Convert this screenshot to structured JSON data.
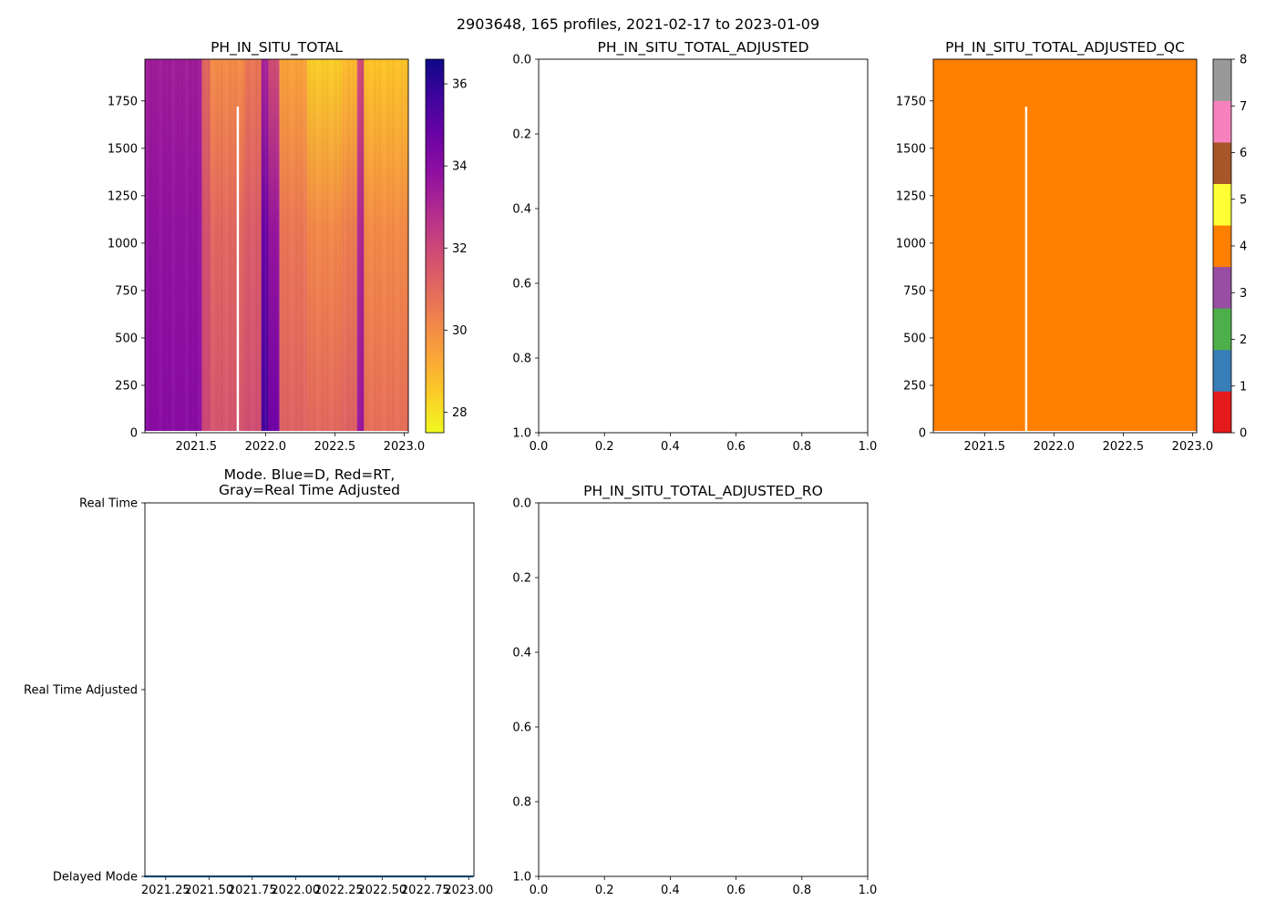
{
  "figure": {
    "suptitle": "2903648, 165 profiles, 2021-02-17 to 2023-01-09"
  },
  "chart_data": [
    {
      "id": "p1",
      "type": "heatmap",
      "title": "PH_IN_SITU_TOTAL",
      "xlim": [
        2021.13,
        2023.03
      ],
      "ylim": [
        1970,
        0
      ],
      "xticks": [
        2021.5,
        2022.0,
        2022.5,
        2023.0
      ],
      "xtick_labels": [
        "2021.5",
        "2022.0",
        "2022.5",
        "2023.0"
      ],
      "yticks": [
        0,
        250,
        500,
        750,
        1000,
        1250,
        1500,
        1750
      ],
      "ytick_labels": [
        "0",
        "250",
        "500",
        "750",
        "1000",
        "1250",
        "1500",
        "1750"
      ],
      "colormap": "plasma_r",
      "colorbar": {
        "range": [
          27.5,
          36.6
        ],
        "ticks": [
          28,
          30,
          32,
          34,
          36
        ],
        "tick_labels": [
          "28",
          "30",
          "32",
          "34",
          "36"
        ]
      },
      "bands": [
        {
          "x0": 2021.13,
          "x1": 2021.54,
          "top": 33.4,
          "bottom": 34.0
        },
        {
          "x0": 2021.54,
          "x1": 2021.6,
          "top": 31.0,
          "bottom": 32.0
        },
        {
          "x0": 2021.6,
          "x1": 2021.85,
          "top": 30.0,
          "bottom": 31.6
        },
        {
          "x0": 2021.85,
          "x1": 2021.97,
          "top": 30.6,
          "bottom": 31.8
        },
        {
          "x0": 2021.97,
          "x1": 2022.02,
          "top": 33.2,
          "bottom": 35.6
        },
        {
          "x0": 2022.02,
          "x1": 2022.1,
          "top": 31.8,
          "bottom": 34.6
        },
        {
          "x0": 2022.1,
          "x1": 2022.3,
          "top": 29.4,
          "bottom": 31.2
        },
        {
          "x0": 2022.3,
          "x1": 2022.55,
          "top": 28.4,
          "bottom": 31.0
        },
        {
          "x0": 2022.55,
          "x1": 2022.66,
          "top": 28.8,
          "bottom": 31.2
        },
        {
          "x0": 2022.66,
          "x1": 2022.71,
          "top": 31.8,
          "bottom": 33.6
        },
        {
          "x0": 2022.71,
          "x1": 2023.03,
          "top": 28.6,
          "bottom": 30.8
        }
      ],
      "gap_x": 2021.8,
      "gap_from_depth": 1720
    },
    {
      "id": "p2",
      "type": "scatter",
      "title": "PH_IN_SITU_TOTAL_ADJUSTED",
      "xlim": [
        0,
        1
      ],
      "ylim": [
        0,
        1
      ],
      "xticks": [
        0.0,
        0.2,
        0.4,
        0.6,
        0.8,
        1.0
      ],
      "xtick_labels": [
        "0.0",
        "0.2",
        "0.4",
        "0.6",
        "0.8",
        "1.0"
      ],
      "yticks": [
        0.0,
        0.2,
        0.4,
        0.6,
        0.8,
        1.0
      ],
      "ytick_labels": [
        "0.0",
        "0.2",
        "0.4",
        "0.6",
        "0.8",
        "1.0"
      ],
      "values": []
    },
    {
      "id": "p3",
      "type": "heatmap",
      "title": "PH_IN_SITU_TOTAL_ADJUSTED_QC",
      "xlim": [
        2021.13,
        2023.03
      ],
      "ylim": [
        1970,
        0
      ],
      "xticks": [
        2021.5,
        2022.0,
        2022.5,
        2023.0
      ],
      "xtick_labels": [
        "2021.5",
        "2022.0",
        "2022.5",
        "2023.0"
      ],
      "yticks": [
        0,
        250,
        500,
        750,
        1000,
        1250,
        1500,
        1750
      ],
      "ytick_labels": [
        "0",
        "250",
        "500",
        "750",
        "1000",
        "1250",
        "1500",
        "1750"
      ],
      "fill_value": 4,
      "fill_color": "#ff7f00",
      "gap_x": 2021.8,
      "gap_from_depth": 1720,
      "colorbar": {
        "range": [
          0,
          8
        ],
        "ticks": [
          0,
          1,
          2,
          3,
          4,
          5,
          6,
          7,
          8
        ],
        "tick_labels": [
          "0",
          "1",
          "2",
          "3",
          "4",
          "5",
          "6",
          "7",
          "8"
        ],
        "colors": [
          "#e41a1c",
          "#377eb8",
          "#4daf4a",
          "#984ea3",
          "#ff7f00",
          "#ffff33",
          "#a65628",
          "#f781bf",
          "#999999"
        ]
      }
    },
    {
      "id": "p4",
      "type": "scatter",
      "title_line1": "Mode. Blue=D, Red=RT,",
      "title_line2": "Gray=Real Time Adjusted",
      "xlim": [
        2021.13,
        2023.03
      ],
      "ylim": [
        0,
        2
      ],
      "xticks": [
        2021.25,
        2021.5,
        2021.75,
        2022.0,
        2022.25,
        2022.5,
        2022.75,
        2023.0
      ],
      "xtick_labels": [
        "2021.25",
        "2021.50",
        "2021.75",
        "2022.00",
        "2022.25",
        "2022.50",
        "2022.75",
        "2023.00"
      ],
      "yticks": [
        0,
        1,
        2
      ],
      "ytick_labels": [
        "Real Time",
        "Real Time Adjusted",
        "Delayed Mode"
      ],
      "series": [
        {
          "name": "Delayed Mode",
          "color": "#1f77b4",
          "y": 2,
          "count": 165,
          "x_start": 2021.13,
          "x_end": 2023.02
        }
      ]
    },
    {
      "id": "p5",
      "type": "scatter",
      "title": "PH_IN_SITU_TOTAL_ADJUSTED_RO",
      "xlim": [
        0,
        1
      ],
      "ylim": [
        0,
        1
      ],
      "xticks": [
        0.0,
        0.2,
        0.4,
        0.6,
        0.8,
        1.0
      ],
      "xtick_labels": [
        "0.0",
        "0.2",
        "0.4",
        "0.6",
        "0.8",
        "1.0"
      ],
      "yticks": [
        0.0,
        0.2,
        0.4,
        0.6,
        0.8,
        1.0
      ],
      "ytick_labels": [
        "0.0",
        "0.2",
        "0.4",
        "0.6",
        "0.8",
        "1.0"
      ],
      "values": []
    }
  ]
}
